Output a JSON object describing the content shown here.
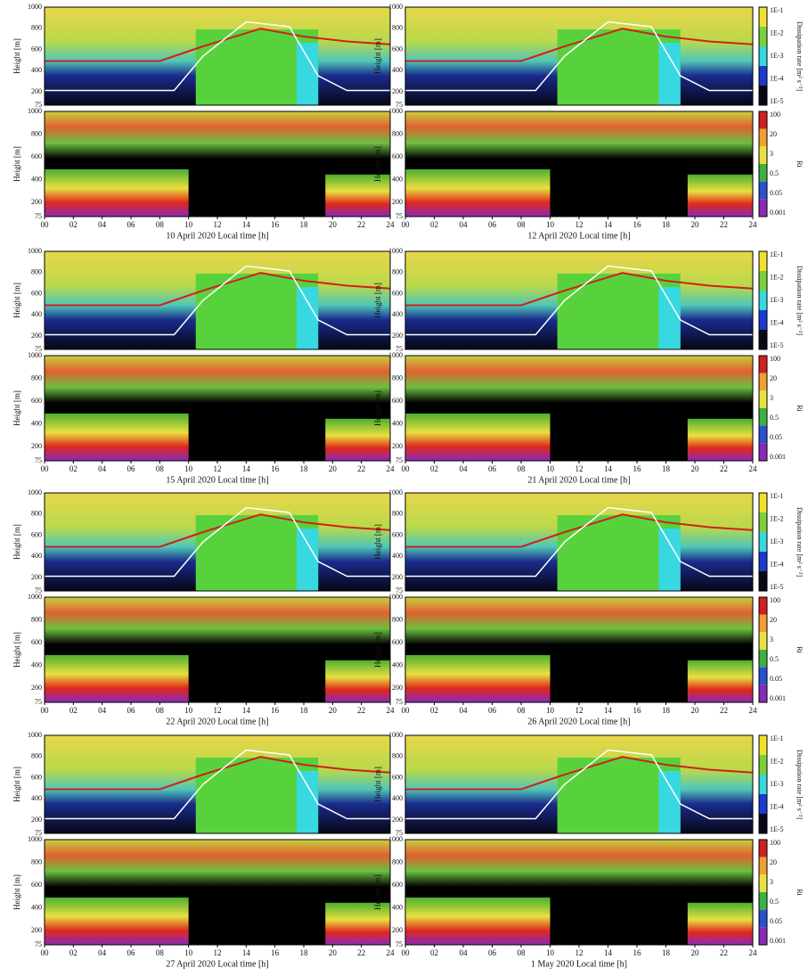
{
  "x_tick_labels": [
    "00",
    "02",
    "04",
    "06",
    "08",
    "10",
    "12",
    "14",
    "16",
    "18",
    "20",
    "22",
    "24"
  ],
  "y_tick_labels": [
    "1000",
    "800",
    "600",
    "400",
    "200",
    "75"
  ],
  "y_axis_title": "Height [m]",
  "dissipation_colorbar": {
    "title": "Dissipation rate [m² s⁻³]",
    "labels": [
      "1E-1",
      "1E-2",
      "1E-3",
      "1E-4",
      "1E-5"
    ]
  },
  "ri_colorbar": {
    "title": "Ri",
    "labels": [
      "100",
      "20",
      "3",
      "0.5",
      "0.05",
      "0.001"
    ]
  },
  "panels": [
    {
      "caption": "10 April 2020 Local time [h]"
    },
    {
      "caption": "12 April 2020 Local time [h]"
    },
    {
      "caption": "15 April 2020 Local time [h]"
    },
    {
      "caption": "21 April 2020 Local time [h]"
    },
    {
      "caption": "22 April 2020 Local time [h]"
    },
    {
      "caption": "26 April 2020 Local time [h]"
    },
    {
      "caption": "27 April 2020 Local time [h]"
    },
    {
      "caption": "1 May 2020 Local time [h]"
    }
  ]
}
